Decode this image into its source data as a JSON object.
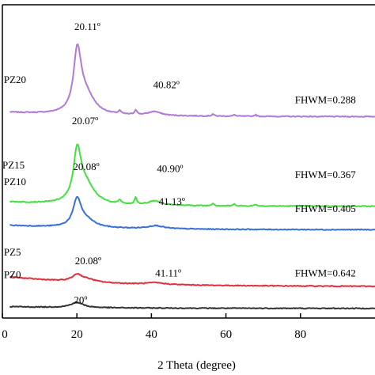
{
  "chart_data": {
    "type": "line",
    "title": "",
    "xlabel": "2 Theta (degree)",
    "ylabel": "",
    "xlim": [
      0,
      100
    ],
    "xticks": [
      "0",
      "20",
      "40",
      "60",
      "80"
    ],
    "grid": false,
    "colors": {
      "PZ0": "#333333",
      "PZ5": "#e0303c",
      "PZ10": "#3a6fd8",
      "PZ15": "#44e040",
      "PZ20": "#b07ad8"
    },
    "series": [
      {
        "name": "PZ20",
        "color": "#b07ad8",
        "baseline": 0.8,
        "tail": 0.25,
        "peaks": [
          {
            "x": 20.11,
            "h": 3.3,
            "w": 1.2
          },
          {
            "x": 21.5,
            "h": 0.75,
            "w": 2.2
          },
          {
            "x": 23.2,
            "h": 0.55,
            "w": 2.5
          },
          {
            "x": 31.5,
            "h": 0.18,
            "w": 0.4
          },
          {
            "x": 35.8,
            "h": 0.28,
            "w": 0.35
          },
          {
            "x": 40.82,
            "h": 0.22,
            "w": 2.0
          },
          {
            "x": 56.5,
            "h": 0.12,
            "w": 0.35
          },
          {
            "x": 62.3,
            "h": 0.09,
            "w": 0.35
          },
          {
            "x": 67.9,
            "h": 0.09,
            "w": 0.35
          }
        ]
      },
      {
        "name": "PZ15",
        "color": "#44e040",
        "baseline": 0.8,
        "tail": 0.25,
        "peaks": [
          {
            "x": 20.07,
            "h": 2.7,
            "w": 1.2
          },
          {
            "x": 21.5,
            "h": 0.75,
            "w": 2.2
          },
          {
            "x": 23.3,
            "h": 0.55,
            "w": 2.5
          },
          {
            "x": 31.5,
            "h": 0.22,
            "w": 0.4
          },
          {
            "x": 35.8,
            "h": 0.38,
            "w": 0.35
          },
          {
            "x": 40.9,
            "h": 0.25,
            "w": 2.0
          },
          {
            "x": 56.5,
            "h": 0.15,
            "w": 0.35
          },
          {
            "x": 62.3,
            "h": 0.1,
            "w": 0.35
          },
          {
            "x": 67.9,
            "h": 0.1,
            "w": 0.35
          }
        ]
      },
      {
        "name": "PZ10",
        "color": "#3a6fd8",
        "baseline": 0.5,
        "tail": 0.25,
        "peaks": [
          {
            "x": 20.08,
            "h": 1.55,
            "w": 1.3
          },
          {
            "x": 22.5,
            "h": 0.4,
            "w": 2.8
          },
          {
            "x": 41.13,
            "h": 0.18,
            "w": 2.5
          }
        ]
      },
      {
        "name": "PZ5",
        "color": "#e0303c",
        "baseline": 0.8,
        "tail": 0.55,
        "peaks": [
          {
            "x": 20.08,
            "h": 0.4,
            "w": 1.6
          },
          {
            "x": 23.0,
            "h": 0.15,
            "w": 2.5
          },
          {
            "x": 41.11,
            "h": 0.1,
            "w": 3.0
          }
        ]
      },
      {
        "name": "PZ0",
        "color": "#333333",
        "baseline": 0.05,
        "tail": 0.1,
        "peaks": [
          {
            "x": 20.0,
            "h": 0.3,
            "w": 2.0
          }
        ]
      }
    ],
    "annotations": [
      {
        "text": "20.11º",
        "x": 22.8,
        "y": 16.0,
        "anchor": "middle",
        "cls": "anno"
      },
      {
        "text": "40.82º",
        "x": 44.0,
        "y": 12.65,
        "anchor": "middle",
        "cls": "anno"
      },
      {
        "text": "20.07º",
        "x": 22.2,
        "y": 10.6,
        "anchor": "middle",
        "cls": "anno"
      },
      {
        "text": "20.08º",
        "x": 22.5,
        "y": 7.95,
        "anchor": "middle",
        "cls": "anno"
      },
      {
        "text": "40.90º",
        "x": 45.0,
        "y": 7.85,
        "anchor": "middle",
        "cls": "anno"
      },
      {
        "text": "41.13º",
        "x": 45.5,
        "y": 5.95,
        "anchor": "middle",
        "cls": "anno"
      },
      {
        "text": "20.08º",
        "x": 23.0,
        "y": 2.55,
        "anchor": "middle",
        "cls": "anno"
      },
      {
        "text": "41.11º",
        "x": 44.5,
        "y": 1.85,
        "anchor": "middle",
        "cls": "anno"
      },
      {
        "text": "20º",
        "x": 21.0,
        "y": 0.3,
        "anchor": "middle",
        "cls": "anno"
      },
      {
        "text": "PZ20",
        "x": 0.4,
        "y": 12.95,
        "anchor": "start",
        "cls": "series-label"
      },
      {
        "text": "PZ15",
        "x": 0.0,
        "y": 8.05,
        "anchor": "start",
        "cls": "series-label"
      },
      {
        "text": "PZ10",
        "x": 0.4,
        "y": 7.1,
        "anchor": "start",
        "cls": "series-label"
      },
      {
        "text": "PZ5",
        "x": 0.4,
        "y": 3.05,
        "anchor": "start",
        "cls": "series-label"
      },
      {
        "text": "PZ0",
        "x": 0.4,
        "y": 1.75,
        "anchor": "start",
        "cls": "series-label"
      },
      {
        "text": "FHWM=0.288",
        "x": 78.5,
        "y": 11.8,
        "anchor": "start",
        "cls": "fwhm"
      },
      {
        "text": "FHWM=0.367",
        "x": 78.5,
        "y": 7.5,
        "anchor": "start",
        "cls": "fwhm"
      },
      {
        "text": "FHWM=0.405",
        "x": 78.5,
        "y": 5.55,
        "anchor": "start",
        "cls": "fwhm"
      },
      {
        "text": "FHWM=0.642",
        "x": 78.5,
        "y": 1.85,
        "anchor": "start",
        "cls": "fwhm"
      }
    ]
  }
}
